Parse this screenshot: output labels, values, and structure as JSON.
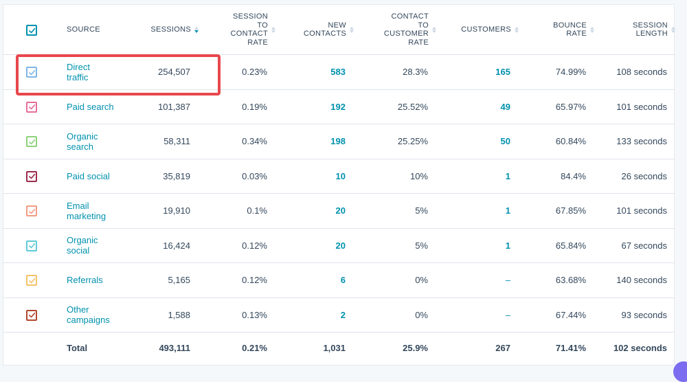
{
  "columns": {
    "source": "SOURCE",
    "sessions": "SESSIONS",
    "session_to_contact_rate": [
      "SESSION",
      "TO",
      "CONTACT",
      "RATE"
    ],
    "new_contacts": [
      "NEW",
      "CONTACTS"
    ],
    "contact_to_customer_rate": [
      "CONTACT",
      "TO",
      "CUSTOMER",
      "RATE"
    ],
    "customers": "CUSTOMERS",
    "bounce_rate": [
      "BOUNCE",
      "RATE"
    ],
    "session_length": [
      "SESSION",
      "LENGTH"
    ]
  },
  "header_checkbox_color": "#0091ae",
  "rows": [
    {
      "source": [
        "Direct",
        "traffic"
      ],
      "sessions": "254,507",
      "s2c": "0.23%",
      "new_contacts": "583",
      "c2c": "28.3%",
      "customers": "165",
      "bounce": "74.99%",
      "length": "108 seconds",
      "color": "#7fb6e8"
    },
    {
      "source": [
        "Paid search"
      ],
      "sessions": "101,387",
      "s2c": "0.19%",
      "new_contacts": "192",
      "c2c": "25.52%",
      "customers": "49",
      "bounce": "65.97%",
      "length": "101 seconds",
      "color": "#e66e9a"
    },
    {
      "source": [
        "Organic",
        "search"
      ],
      "sessions": "58,311",
      "s2c": "0.34%",
      "new_contacts": "198",
      "c2c": "25.25%",
      "customers": "50",
      "bounce": "60.84%",
      "length": "133 seconds",
      "color": "#8fd17a"
    },
    {
      "source": [
        "Paid social"
      ],
      "sessions": "35,819",
      "s2c": "0.03%",
      "new_contacts": "10",
      "c2c": "10%",
      "customers": "1",
      "bounce": "84.4%",
      "length": "26 seconds",
      "color": "#9b2c4a"
    },
    {
      "source": [
        "Email",
        "marketing"
      ],
      "sessions": "19,910",
      "s2c": "0.1%",
      "new_contacts": "20",
      "c2c": "5%",
      "customers": "1",
      "bounce": "67.85%",
      "length": "101 seconds",
      "color": "#f29c84"
    },
    {
      "source": [
        "Organic",
        "social"
      ],
      "sessions": "16,424",
      "s2c": "0.12%",
      "new_contacts": "20",
      "c2c": "5%",
      "customers": "1",
      "bounce": "65.84%",
      "length": "67 seconds",
      "color": "#5fcad6"
    },
    {
      "source": [
        "Referrals"
      ],
      "sessions": "5,165",
      "s2c": "0.12%",
      "new_contacts": "6",
      "c2c": "0%",
      "customers": "–",
      "bounce": "63.68%",
      "length": "140 seconds",
      "color": "#f5c26b"
    },
    {
      "source": [
        "Other",
        "campaigns"
      ],
      "sessions": "1,588",
      "s2c": "0.13%",
      "new_contacts": "2",
      "c2c": "0%",
      "customers": "–",
      "bounce": "67.44%",
      "length": "93 seconds",
      "color": "#b2472e"
    }
  ],
  "total": {
    "label": "Total",
    "sessions": "493,111",
    "s2c": "0.21%",
    "new_contacts": "1,031",
    "c2c": "25.9%",
    "customers": "267",
    "bounce": "71.41%",
    "length": "102 seconds"
  }
}
